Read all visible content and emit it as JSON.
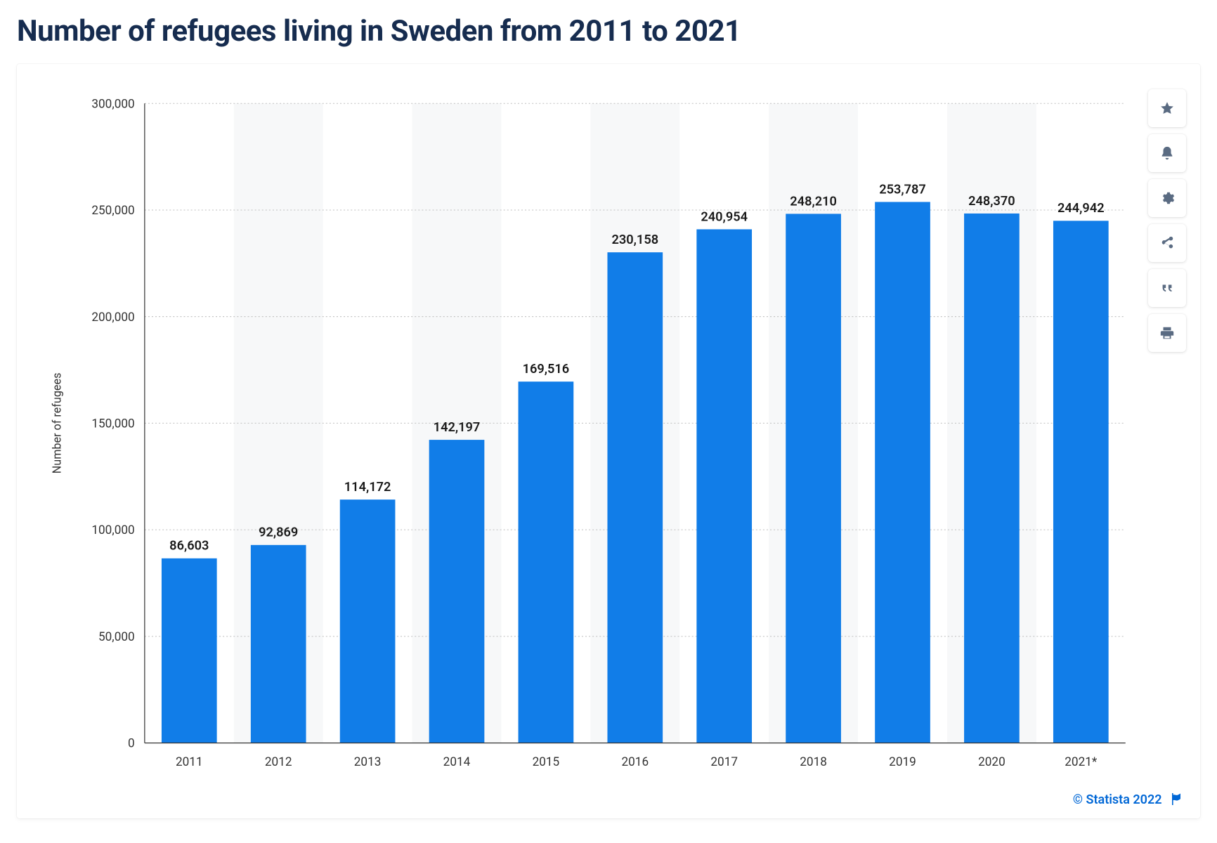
{
  "title": "Number of refugees living in Sweden from 2011 to 2021",
  "chart": {
    "type": "bar",
    "categories": [
      "2011",
      "2012",
      "2013",
      "2014",
      "2015",
      "2016",
      "2017",
      "2018",
      "2019",
      "2020",
      "2021*"
    ],
    "values": [
      86603,
      92869,
      114172,
      142197,
      169516,
      230158,
      240954,
      248210,
      253787,
      248370,
      244942
    ],
    "value_labels": [
      "86,603",
      "92,869",
      "114,172",
      "142,197",
      "169,516",
      "230,158",
      "240,954",
      "248,210",
      "253,787",
      "248,370",
      "244,942"
    ],
    "bar_color": "#117de8",
    "background_color": "#ffffff",
    "alt_band_color": "#f7f8f9",
    "grid_color": "#bfbfbf",
    "axis_color": "#333333",
    "ylabel": "Number of refugees",
    "ylim": [
      0,
      300000
    ],
    "yticks": [
      0,
      50000,
      100000,
      150000,
      200000,
      250000,
      300000
    ],
    "ytick_labels": [
      "0",
      "50,000",
      "100,000",
      "150,000",
      "200,000",
      "250,000",
      "300,000"
    ],
    "bar_width_ratio": 0.62,
    "title_fontsize": 42,
    "tick_fontsize": 17,
    "bar_label_fontsize": 18,
    "ylabel_fontsize": 16
  },
  "toolbar_icons": [
    "star",
    "bell",
    "gear",
    "share",
    "quote",
    "print"
  ],
  "footer": {
    "copyright": "© Statista 2022",
    "link_color": "#0067d6"
  }
}
